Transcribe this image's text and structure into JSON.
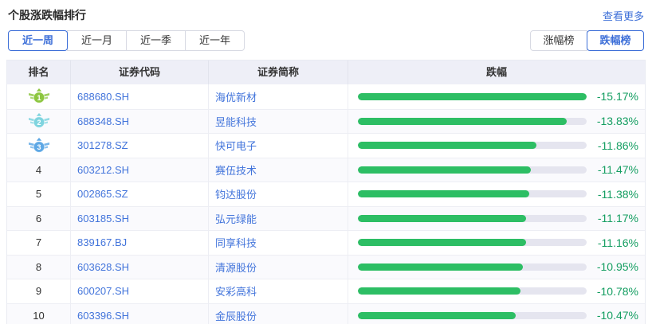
{
  "header": {
    "title": "个股涨跌幅排行",
    "more_link": "查看更多"
  },
  "period_tabs": [
    {
      "label": "近一周",
      "active": true
    },
    {
      "label": "近一月",
      "active": false
    },
    {
      "label": "近一季",
      "active": false
    },
    {
      "label": "近一年",
      "active": false
    }
  ],
  "rank_type_toggle": [
    {
      "label": "涨幅榜",
      "active": false
    },
    {
      "label": "跌幅榜",
      "active": true
    }
  ],
  "table": {
    "columns": [
      "排名",
      "证券代码",
      "证券简称",
      "跌幅"
    ],
    "max_abs_pct": 15.17,
    "rows": [
      {
        "rank": "1",
        "code": "688680.SH",
        "name": "海优新材",
        "pct": "-15.17%",
        "value": 15.17,
        "medal_color": "#8CC63F"
      },
      {
        "rank": "2",
        "code": "688348.SH",
        "name": "昱能科技",
        "pct": "-13.83%",
        "value": 13.83,
        "medal_color": "#7FD4DF"
      },
      {
        "rank": "3",
        "code": "301278.SZ",
        "name": "快可电子",
        "pct": "-11.86%",
        "value": 11.86,
        "medal_color": "#5EA8E5"
      },
      {
        "rank": "4",
        "code": "603212.SH",
        "name": "赛伍技术",
        "pct": "-11.47%",
        "value": 11.47
      },
      {
        "rank": "5",
        "code": "002865.SZ",
        "name": "钧达股份",
        "pct": "-11.38%",
        "value": 11.38
      },
      {
        "rank": "6",
        "code": "603185.SH",
        "name": "弘元绿能",
        "pct": "-11.17%",
        "value": 11.17
      },
      {
        "rank": "7",
        "code": "839167.BJ",
        "name": "同享科技",
        "pct": "-11.16%",
        "value": 11.16
      },
      {
        "rank": "8",
        "code": "603628.SH",
        "name": "清源股份",
        "pct": "-10.95%",
        "value": 10.95
      },
      {
        "rank": "9",
        "code": "600207.SH",
        "name": "安彩高科",
        "pct": "-10.78%",
        "value": 10.78
      },
      {
        "rank": "10",
        "code": "603396.SH",
        "name": "金辰股份",
        "pct": "-10.47%",
        "value": 10.47
      }
    ]
  },
  "colors": {
    "accent_blue": "#3D6FD8",
    "link_blue": "#4274DB",
    "bar_green": "#2DBE64",
    "pct_green": "#159E62",
    "bar_track": "#E5E5EF",
    "header_bg": "#EEEFF7",
    "medal_rank1": "#8CC63F",
    "medal_rank2": "#7FD4DF",
    "medal_rank3": "#5EA8E5"
  }
}
